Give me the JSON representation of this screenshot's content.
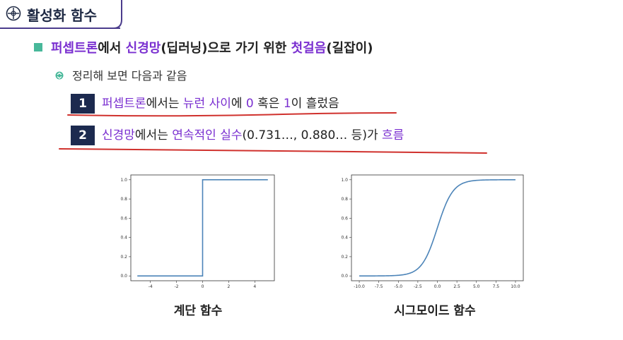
{
  "title": "활성화 함수",
  "bullet1": {
    "part1": "퍼셉트론",
    "part2": "에서 ",
    "part3": "신경망",
    "part4": "(딥러닝)으로 가기 위한 ",
    "part5": "첫걸음",
    "part6": "(길잡이)"
  },
  "bullet2": "정리해 보면 다음과 같음",
  "rows": [
    {
      "num": "1",
      "segments": [
        "퍼셉트론",
        "에서는 ",
        "뉴런 사이",
        "에 ",
        "0",
        " 혹은 ",
        "1",
        "이 흘렀음"
      ]
    },
    {
      "num": "2",
      "segments": [
        "신경망",
        "에서는 ",
        "연속적인 실수",
        "(0.731…, 0.880… 등)가 ",
        "흐름"
      ]
    }
  ],
  "colors": {
    "accent": "#7a2fd0",
    "navy": "#1c2a4f",
    "green": "#48b89a",
    "red": "#d0312d",
    "line": "#4c84b8"
  },
  "chart_data": [
    {
      "type": "line",
      "x": [
        -5,
        0,
        0,
        5
      ],
      "y": [
        0.0,
        0.0,
        1.0,
        1.0
      ],
      "xticks": [
        "-4",
        "-2",
        "0",
        "2",
        "4"
      ],
      "yticks": [
        "0.0",
        "0.2",
        "0.4",
        "0.6",
        "0.8",
        "1.0"
      ],
      "xlim": [
        -5.5,
        5.5
      ],
      "ylim": [
        -0.05,
        1.05
      ],
      "caption": "계단 함수"
    },
    {
      "type": "line",
      "function": "sigmoid",
      "x_range": [
        -10,
        10
      ],
      "xticks": [
        "-10.0",
        "-7.5",
        "-5.0",
        "-2.5",
        "0.0",
        "2.5",
        "5.0",
        "7.5",
        "10.0"
      ],
      "yticks": [
        "0.0",
        "0.2",
        "0.4",
        "0.6",
        "0.8",
        "1.0"
      ],
      "xlim": [
        -11,
        11
      ],
      "ylim": [
        -0.05,
        1.05
      ],
      "caption": "시그모이드 함수"
    }
  ]
}
